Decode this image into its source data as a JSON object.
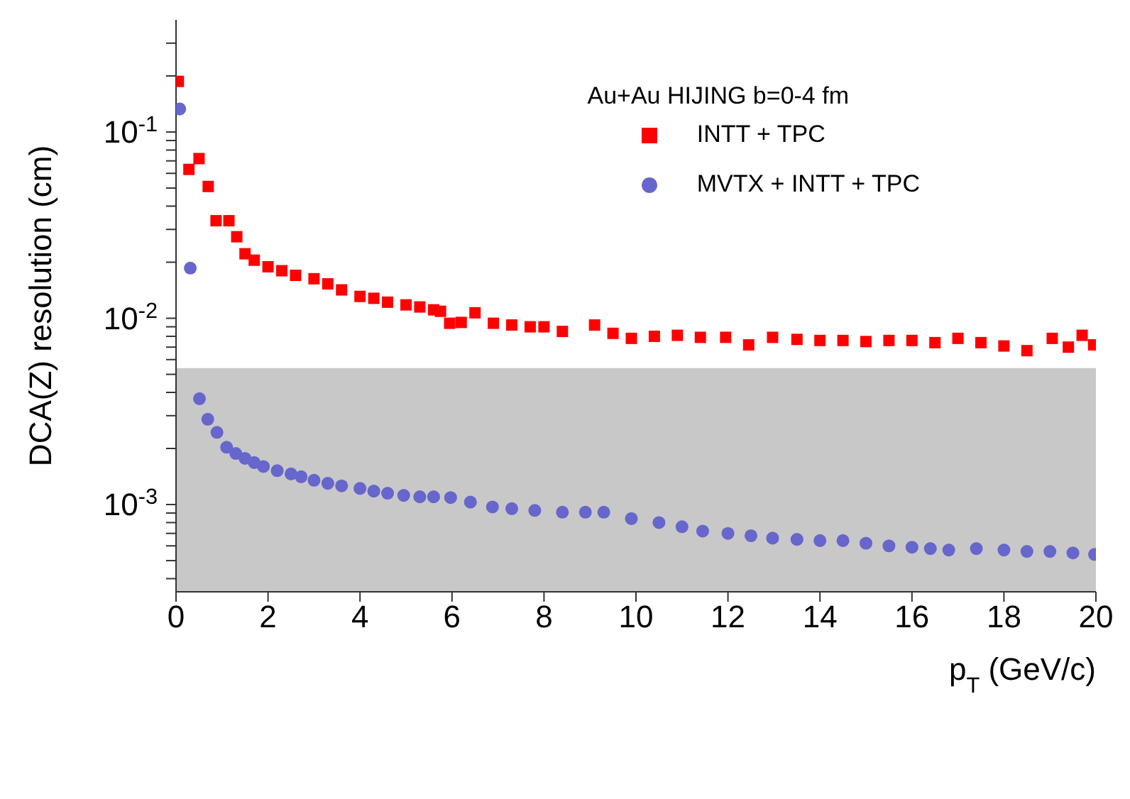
{
  "chart_data": {
    "type": "scatter",
    "xlabel": "p$_{T}$ (GeV/c)",
    "ylabel": "DCA(Z) resolution (cm)",
    "legend_title": "Au+Au HIJING b=0-4 fm",
    "legend": "top right",
    "log": "y",
    "xlim": [
      0,
      20
    ],
    "xticks": [
      0,
      2,
      4,
      6,
      8,
      10,
      12,
      14,
      16,
      18,
      20
    ],
    "ylim": [
      0.00034,
      0.4
    ],
    "yticks": [
      {
        "value": 0.0004,
        "label": null
      },
      {
        "value": 0.0005,
        "label": null
      },
      {
        "value": 0.0006,
        "label": null
      },
      {
        "value": 0.0007,
        "label": null
      },
      {
        "value": 0.0008,
        "label": null
      },
      {
        "value": 0.0009,
        "label": null
      },
      {
        "value": 0.001,
        "label": "10$^{-3}$"
      },
      {
        "value": 0.002,
        "label": null
      },
      {
        "value": 0.003,
        "label": null
      },
      {
        "value": 0.004,
        "label": null
      },
      {
        "value": 0.005,
        "label": null
      },
      {
        "value": 0.006,
        "label": null
      },
      {
        "value": 0.007,
        "label": null
      },
      {
        "value": 0.008,
        "label": null
      },
      {
        "value": 0.009,
        "label": null
      },
      {
        "value": 0.01,
        "label": "10$^{-2}$"
      },
      {
        "value": 0.02,
        "label": null
      },
      {
        "value": 0.03,
        "label": null
      },
      {
        "value": 0.04,
        "label": null
      },
      {
        "value": 0.05,
        "label": null
      },
      {
        "value": 0.06,
        "label": null
      },
      {
        "value": 0.07,
        "label": null
      },
      {
        "value": 0.08,
        "label": null
      },
      {
        "value": 0.09,
        "label": null
      },
      {
        "value": 0.1,
        "label": "10$^{-1}$"
      },
      {
        "value": 0.2,
        "label": null
      },
      {
        "value": 0.3,
        "label": null
      }
    ],
    "bands": [
      {
        "axis": "y",
        "from": 0.00034,
        "to": 0.0054,
        "color": "#c8c8c8"
      }
    ],
    "series": [
      {
        "name": "INTT + TPC",
        "color": "#ff0000",
        "marker": "square",
        "x": [
          0.05,
          0.28,
          0.5,
          0.7,
          0.87,
          1.15,
          1.32,
          1.5,
          1.7,
          2,
          2.3,
          2.6,
          3,
          3.3,
          3.6,
          4,
          4.3,
          4.6,
          5,
          5.3,
          5.6,
          5.75,
          5.95,
          6.2,
          6.5,
          6.9,
          7.3,
          7.7,
          8,
          8.4,
          9.1,
          9.5,
          9.9,
          10.4,
          10.9,
          11.4,
          11.95,
          12.45,
          12.97,
          13.5,
          14,
          14.5,
          15,
          15.5,
          16,
          16.5,
          17,
          17.5,
          18,
          18.5,
          19.05,
          19.4,
          19.7,
          19.95
        ],
        "values": [
          0.187,
          0.063,
          0.072,
          0.051,
          0.0334,
          0.0334,
          0.0274,
          0.0222,
          0.0205,
          0.0189,
          0.018,
          0.017,
          0.0163,
          0.0153,
          0.0142,
          0.0131,
          0.0128,
          0.0122,
          0.0118,
          0.0115,
          0.0111,
          0.0109,
          0.0094,
          0.0095,
          0.0107,
          0.0094,
          0.0092,
          0.009,
          0.009,
          0.0085,
          0.0092,
          0.0083,
          0.0078,
          0.008,
          0.0081,
          0.0079,
          0.0079,
          0.0072,
          0.0079,
          0.0077,
          0.0076,
          0.0076,
          0.0075,
          0.0076,
          0.0076,
          0.0074,
          0.0078,
          0.0074,
          0.0071,
          0.0067,
          0.0078,
          0.007,
          0.0081,
          0.0072
        ]
      },
      {
        "name": "MVTX + INTT + TPC",
        "color": "#6666cc",
        "marker": "circle",
        "x": [
          0.08,
          0.31,
          0.51,
          0.69,
          0.89,
          1.1,
          1.3,
          1.5,
          1.7,
          1.9,
          2.2,
          2.5,
          2.72,
          3,
          3.3,
          3.6,
          4,
          4.3,
          4.6,
          4.95,
          5.3,
          5.6,
          5.97,
          6.4,
          6.88,
          7.3,
          7.8,
          8.4,
          8.9,
          9.3,
          9.9,
          10.5,
          11,
          11.45,
          12,
          12.5,
          12.97,
          13.5,
          14,
          14.5,
          15,
          15.5,
          16,
          16.4,
          16.8,
          17.4,
          18,
          18.5,
          19,
          19.5,
          19.97
        ],
        "values": [
          0.133,
          0.0186,
          0.0037,
          0.00287,
          0.00244,
          0.00203,
          0.00188,
          0.00177,
          0.00168,
          0.0016,
          0.00152,
          0.00146,
          0.00141,
          0.00135,
          0.0013,
          0.00126,
          0.00122,
          0.00118,
          0.00115,
          0.00112,
          0.0011,
          0.0011,
          0.00109,
          0.00103,
          0.00097,
          0.00095,
          0.00093,
          0.00091,
          0.00091,
          0.00091,
          0.00084,
          0.0008,
          0.00076,
          0.00072,
          0.0007,
          0.00068,
          0.00066,
          0.00065,
          0.00064,
          0.00064,
          0.00062,
          0.0006,
          0.00059,
          0.00058,
          0.00057,
          0.00058,
          0.00057,
          0.00056,
          0.00056,
          0.00055,
          0.00054
        ]
      }
    ]
  }
}
